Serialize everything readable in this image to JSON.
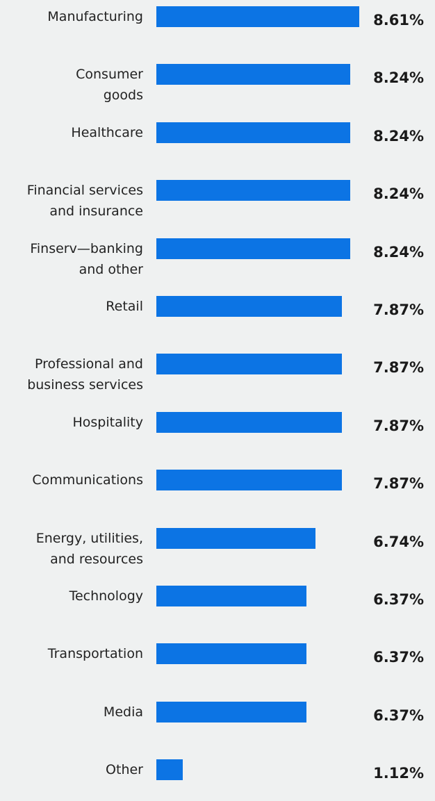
{
  "chart_data": {
    "type": "bar",
    "orientation": "horizontal",
    "bar_color": "#0c74e4",
    "background": "#eff1f1",
    "categories": [
      "Manufacturing",
      "Consumer\ngoods",
      "Healthcare",
      "Financial services\nand insurance",
      "Finserv—banking\nand other",
      "Retail",
      "Professional and\nbusiness services",
      "Hospitality",
      "Communications",
      "Energy, utilities,\nand resources",
      "Technology",
      "Transportation",
      "Media",
      "Other"
    ],
    "values": [
      8.61,
      8.24,
      8.24,
      8.24,
      8.24,
      7.87,
      7.87,
      7.87,
      7.87,
      6.74,
      6.37,
      6.37,
      6.37,
      1.12
    ],
    "labels": [
      "8.61%",
      "8.24%",
      "8.24%",
      "8.24%",
      "8.24%",
      "7.87%",
      "7.87%",
      "7.87%",
      "7.87%",
      "6.74%",
      "6.37%",
      "6.37%",
      "6.37%",
      "1.12%"
    ],
    "title": "",
    "xlabel": "",
    "ylabel": "",
    "xlim": [
      0,
      8.61
    ]
  }
}
